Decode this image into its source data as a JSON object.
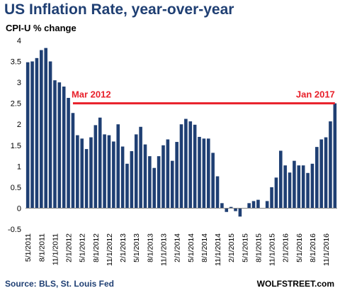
{
  "chart_data": {
    "type": "bar",
    "title": "US Inflation Rate, year-over-year",
    "subtitle": "CPI-U % change",
    "ylim": [
      -0.5,
      4
    ],
    "yticks": [
      -0.5,
      0,
      0.5,
      1,
      1.5,
      2,
      2.5,
      3,
      3.5,
      4
    ],
    "grid": false,
    "bar_color": "#1f3f73",
    "x_tick_labels": [
      "5/1/2011",
      "8/1/2011",
      "11/1/2011",
      "2/1/2012",
      "5/1/2012",
      "8/1/2012",
      "11/1/2012",
      "2/1/2013",
      "5/1/2013",
      "8/1/2013",
      "11/1/2013",
      "2/1/2014",
      "5/1/2014",
      "8/1/2014",
      "11/1/2014",
      "2/1/2015",
      "5/1/2015",
      "8/1/2015",
      "11/1/2015",
      "2/1/2016",
      "5/1/2016",
      "8/1/2016",
      "11/1/2016"
    ],
    "values": [
      3.48,
      3.5,
      3.58,
      3.77,
      3.82,
      3.5,
      3.05,
      3.0,
      2.9,
      2.63,
      2.27,
      1.74,
      1.66,
      1.41,
      1.69,
      1.98,
      2.16,
      1.76,
      1.74,
      1.59,
      2.0,
      1.47,
      1.06,
      1.36,
      1.76,
      1.94,
      1.52,
      1.24,
      0.96,
      1.24,
      1.5,
      1.64,
      1.13,
      1.58,
      2.0,
      2.13,
      2.07,
      1.99,
      1.7,
      1.66,
      1.66,
      1.32,
      0.76,
      0.12,
      -0.09,
      0.03,
      -0.07,
      -0.2,
      0.0,
      0.12,
      0.17,
      0.2,
      0.0,
      0.17,
      0.5,
      0.73,
      1.37,
      1.02,
      0.85,
      1.13,
      1.02,
      1.02,
      0.84,
      1.06,
      1.46,
      1.64,
      1.69,
      2.07,
      2.5
    ],
    "reference_line": {
      "value": 2.5,
      "color": "#e8202a",
      "start_label": "Mar 2012",
      "end_label": "Jan 2017"
    },
    "source": "Source: BLS, St. Louis Fed",
    "brand": "WOLFSTREET.com"
  }
}
